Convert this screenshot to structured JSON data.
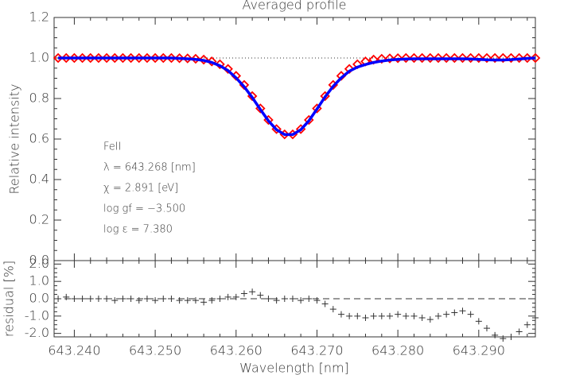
{
  "chart_data": [
    {
      "type": "line",
      "title": "Averaged profile",
      "y_label": "Relative intensity",
      "x": [
        643.238,
        643.239,
        643.24,
        643.241,
        643.242,
        643.243,
        643.244,
        643.245,
        643.246,
        643.247,
        643.248,
        643.249,
        643.25,
        643.251,
        643.252,
        643.253,
        643.254,
        643.255,
        643.256,
        643.257,
        643.258,
        643.259,
        643.26,
        643.261,
        643.262,
        643.263,
        643.264,
        643.265,
        643.266,
        643.267,
        643.268,
        643.269,
        643.27,
        643.271,
        643.272,
        643.273,
        643.274,
        643.275,
        643.276,
        643.277,
        643.278,
        643.279,
        643.28,
        643.281,
        643.282,
        643.283,
        643.284,
        643.285,
        643.286,
        643.287,
        643.288,
        643.289,
        643.29,
        643.291,
        643.292,
        643.293,
        643.294,
        643.295,
        643.296,
        643.297
      ],
      "series": [
        {
          "color": "#ff0000",
          "marker": "diamond",
          "values": [
            1.0,
            1.0,
            1.0,
            1.0,
            1.0,
            1.0,
            1.0,
            1.0,
            1.0,
            1.0,
            1.0,
            1.0,
            1.0,
            1.0,
            1.0,
            0.999,
            0.998,
            0.996,
            0.992,
            0.983,
            0.969,
            0.946,
            0.912,
            0.867,
            0.812,
            0.751,
            0.694,
            0.649,
            0.623,
            0.623,
            0.649,
            0.694,
            0.751,
            0.812,
            0.867,
            0.912,
            0.946,
            0.969,
            0.983,
            0.992,
            0.996,
            0.998,
            0.999,
            1.0,
            1.0,
            1.0,
            1.0,
            1.0,
            1.0,
            1.0,
            1.0,
            1.0,
            1.0,
            1.0,
            1.0,
            1.0,
            1.0,
            1.0,
            1.0,
            1.0
          ]
        },
        {
          "color": "#0000ff",
          "values": [
            1.0,
            1.0,
            1.0,
            1.0,
            1.0,
            1.0,
            1.0,
            1.0,
            1.0,
            1.0,
            1.0,
            1.0,
            1.0,
            1.0,
            1.0,
            0.998,
            0.996,
            0.993,
            0.988,
            0.978,
            0.962,
            0.938,
            0.902,
            0.858,
            0.805,
            0.746,
            0.69,
            0.646,
            0.622,
            0.622,
            0.646,
            0.69,
            0.748,
            0.808,
            0.86,
            0.902,
            0.935,
            0.955,
            0.968,
            0.978,
            0.985,
            0.99,
            0.993,
            0.995,
            0.996,
            0.996,
            0.996,
            0.996,
            0.996,
            0.996,
            0.996,
            0.995,
            0.993,
            0.991,
            0.99,
            0.99,
            0.992,
            0.995,
            0.998,
            1.0
          ]
        }
      ],
      "hline": 1,
      "annotations": [
        "FeII",
        "λ = 643.268 [nm]",
        "χ =  2.891 [eV]",
        "log gf = −3.500",
        "log ε =  7.380"
      ],
      "xlim": [
        643.2375,
        643.297
      ],
      "ylim": [
        0,
        1.2
      ],
      "yticks": [
        {
          "value": 0,
          "label": "0.0"
        },
        0.2,
        0.4,
        0.6,
        0.8,
        {
          "value": 1,
          "label": "1.0"
        },
        1.2
      ]
    },
    {
      "type": "scatter",
      "marker": "plus",
      "color": "#333333",
      "y_label": "residual [%]",
      "x_label": "Wavelength [nm]",
      "x": [
        643.238,
        643.239,
        643.24,
        643.241,
        643.242,
        643.243,
        643.244,
        643.245,
        643.246,
        643.247,
        643.248,
        643.249,
        643.25,
        643.251,
        643.252,
        643.253,
        643.254,
        643.255,
        643.256,
        643.257,
        643.258,
        643.259,
        643.26,
        643.261,
        643.262,
        643.263,
        643.264,
        643.265,
        643.266,
        643.267,
        643.268,
        643.269,
        643.27,
        643.271,
        643.272,
        643.273,
        643.274,
        643.275,
        643.276,
        643.277,
        643.278,
        643.279,
        643.28,
        643.281,
        643.282,
        643.283,
        643.284,
        643.285,
        643.286,
        643.287,
        643.288,
        643.289,
        643.29,
        643.291,
        643.292,
        643.293,
        643.294,
        643.295,
        643.296,
        643.297
      ],
      "values": [
        0.0,
        0.1,
        0.0,
        0.0,
        0.0,
        0.0,
        0.0,
        -0.1,
        0.0,
        0.0,
        -0.1,
        0.0,
        -0.1,
        0.0,
        0.0,
        -0.1,
        -0.1,
        -0.1,
        -0.2,
        -0.1,
        0.0,
        0.1,
        0.1,
        0.3,
        0.4,
        0.2,
        0.0,
        -0.1,
        0.0,
        0.0,
        -0.1,
        0.0,
        -0.1,
        -0.3,
        -0.6,
        -0.9,
        -1.0,
        -1.0,
        -1.1,
        -1.0,
        -1.0,
        -1.0,
        -0.9,
        -1.0,
        -1.0,
        -1.1,
        -1.2,
        -1.0,
        -0.9,
        -0.8,
        -0.7,
        -0.9,
        -1.3,
        -1.7,
        -2.1,
        -2.3,
        -2.2,
        -1.9,
        -1.5,
        -1.1
      ],
      "hline": 0,
      "xlim": [
        643.2375,
        643.297
      ],
      "ylim": [
        -2.2,
        2.2
      ],
      "yticks": [
        {
          "value": -2,
          "label": "-2.0"
        },
        {
          "value": -1,
          "label": "-1.0"
        },
        {
          "value": 0,
          "label": "0.0"
        },
        {
          "value": 1,
          "label": "1.0"
        },
        {
          "value": 2,
          "label": "2.0"
        }
      ],
      "xticks": [
        {
          "value": 643.24,
          "label": "643.240"
        },
        {
          "value": 643.25,
          "label": "643.250"
        },
        {
          "value": 643.26,
          "label": "643.260"
        },
        {
          "value": 643.27,
          "label": "643.270"
        },
        {
          "value": 643.28,
          "label": "643.280"
        },
        {
          "value": 643.29,
          "label": "643.290"
        }
      ]
    }
  ]
}
